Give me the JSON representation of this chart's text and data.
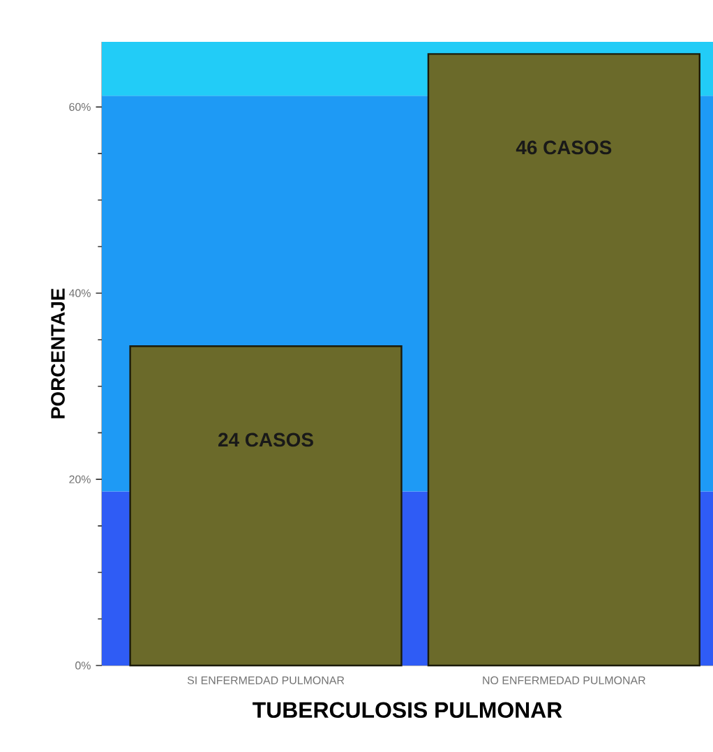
{
  "chart_data": {
    "type": "bar",
    "xlabel": "TUBERCULOSIS PULMONAR",
    "ylabel": "PORCENTAJE",
    "categories": [
      "SI ENFERMEDAD PULMONAR",
      "NO ENFERMEDAD PULMONAR"
    ],
    "values": [
      34.3,
      65.7
    ],
    "color": "#6b6a2a",
    "annotations": [
      "24 CASOS",
      "46 CASOS"
    ],
    "ylim": [
      0,
      67
    ],
    "yticks": [
      {
        "value": 0,
        "label": "0%"
      },
      {
        "value": 20,
        "label": "20%"
      },
      {
        "value": 40,
        "label": "40%"
      },
      {
        "value": 60,
        "label": "60%"
      }
    ],
    "bands": [
      {
        "axis": "y",
        "from": 0,
        "to": 18.7,
        "color": "#2f5cf5"
      },
      {
        "axis": "y",
        "from": 18.7,
        "to": 61.2,
        "color": "#1e9af5"
      },
      {
        "axis": "y",
        "from": 61.2,
        "to": 67,
        "color": "#22ccf7"
      }
    ]
  }
}
